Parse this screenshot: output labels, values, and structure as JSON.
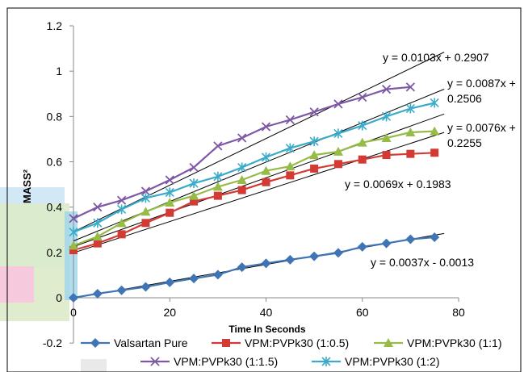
{
  "chart_data": {
    "type": "line",
    "xlabel": "Time In Seconds",
    "ylabel": "MASS²",
    "xlim": [
      0,
      80
    ],
    "ylim": [
      -0.2,
      1.2
    ],
    "xticks": [
      "0",
      "20",
      "40",
      "60",
      "80"
    ],
    "yticks": [
      "-0.2",
      "0",
      "0.2",
      "0.4",
      "0.6",
      "0.8",
      "1",
      "1.2"
    ],
    "grid": false,
    "legend_position": "bottom",
    "series": [
      {
        "name": "Valsartan Pure",
        "color": "#3f75b5",
        "marker": "diamond",
        "x": [
          0,
          5,
          10,
          15,
          20,
          25,
          30,
          35,
          40,
          45,
          50,
          55,
          60,
          65,
          70,
          75
        ],
        "y": [
          0,
          0.018,
          0.033,
          0.048,
          0.068,
          0.085,
          0.102,
          0.135,
          0.152,
          0.168,
          0.183,
          0.198,
          0.225,
          0.24,
          0.258,
          0.267
        ]
      },
      {
        "name": "VPM:PVPk30 (1:0.5)",
        "color": "#d33a34",
        "marker": "square",
        "x": [
          0,
          5,
          10,
          15,
          20,
          25,
          30,
          35,
          40,
          45,
          50,
          55,
          60,
          65,
          70,
          75
        ],
        "y": [
          0.21,
          0.24,
          0.28,
          0.33,
          0.375,
          0.425,
          0.45,
          0.475,
          0.51,
          0.54,
          0.57,
          0.59,
          0.61,
          0.63,
          0.635,
          0.64
        ]
      },
      {
        "name": "VPM:PVPk30 (1:1)",
        "color": "#96bb47",
        "marker": "triangle",
        "x": [
          0,
          5,
          10,
          15,
          20,
          25,
          30,
          35,
          40,
          45,
          50,
          55,
          60,
          65,
          70,
          75
        ],
        "y": [
          0.23,
          0.27,
          0.33,
          0.38,
          0.42,
          0.45,
          0.49,
          0.52,
          0.56,
          0.58,
          0.63,
          0.645,
          0.685,
          0.705,
          0.73,
          0.735
        ]
      },
      {
        "name": "VPM:PVPk30 (1:1.5)",
        "color": "#7e58a5",
        "marker": "x",
        "x": [
          0,
          5,
          10,
          15,
          20,
          25,
          30,
          35,
          40,
          45,
          50,
          55,
          60,
          65,
          70
        ],
        "y": [
          0.35,
          0.4,
          0.43,
          0.47,
          0.52,
          0.575,
          0.67,
          0.705,
          0.755,
          0.785,
          0.82,
          0.855,
          0.885,
          0.92,
          0.93
        ]
      },
      {
        "name": "VPM:PVPk30 (1:2)",
        "color": "#3aabc8",
        "marker": "asterisk",
        "x": [
          0,
          5,
          10,
          15,
          20,
          25,
          30,
          35,
          40,
          45,
          50,
          55,
          60,
          65,
          70,
          75
        ],
        "y": [
          0.29,
          0.33,
          0.39,
          0.44,
          0.465,
          0.505,
          0.535,
          0.575,
          0.62,
          0.66,
          0.69,
          0.725,
          0.76,
          0.8,
          0.835,
          0.86
        ]
      }
    ],
    "trendlines": [
      {
        "label": "y = 0.0103x + 0.2907",
        "slope": 0.0103,
        "intercept": 0.2907,
        "x_range": [
          0,
          77
        ]
      },
      {
        "label_lines": [
          "y = 0.0087x +",
          "0.2506"
        ],
        "slope": 0.0087,
        "intercept": 0.2506,
        "x_range": [
          0,
          77
        ]
      },
      {
        "label_lines": [
          "y = 0.0076x +",
          "0.2255"
        ],
        "slope": 0.0076,
        "intercept": 0.2255,
        "x_range": [
          0,
          77
        ]
      },
      {
        "label": "y = 0.0069x + 0.1983",
        "slope": 0.0069,
        "intercept": 0.1983,
        "x_range": [
          0,
          77
        ]
      },
      {
        "label": "y = 0.0037x - 0.0013",
        "slope": 0.0037,
        "intercept": -0.0013,
        "x_range": [
          0,
          77
        ]
      }
    ]
  }
}
